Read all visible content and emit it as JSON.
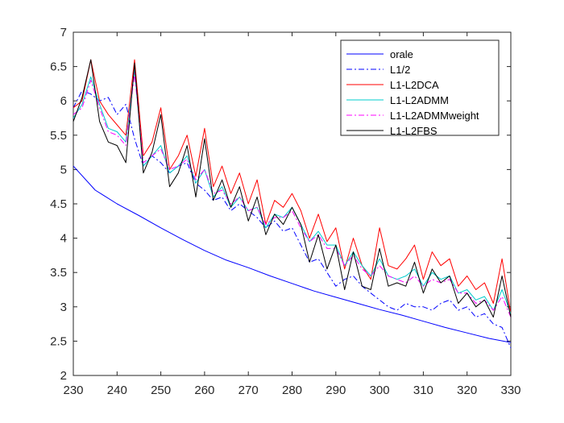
{
  "chart_data": {
    "type": "line",
    "title": "",
    "xlabel": "",
    "ylabel": "",
    "xlim": [
      230,
      330
    ],
    "ylim": [
      2,
      7
    ],
    "xticks": [
      230,
      240,
      250,
      260,
      270,
      280,
      290,
      300,
      310,
      320,
      330
    ],
    "yticks": [
      2,
      2.5,
      3,
      3.5,
      4,
      4.5,
      5,
      5.5,
      6,
      6.5,
      7
    ],
    "xtick_labels": [
      "230",
      "240",
      "250",
      "260",
      "270",
      "280",
      "290",
      "300",
      "310",
      "320",
      "330"
    ],
    "ytick_labels": [
      "2",
      "2.5",
      "3",
      "3.5",
      "4",
      "4.5",
      "5",
      "5.5",
      "6",
      "6.5",
      "7"
    ],
    "grid": false,
    "legend": {
      "placement": "top-right"
    },
    "series": [
      {
        "name": "orale",
        "color": "#0000ff",
        "dash": "solid",
        "x": [
          230,
          235,
          240,
          245,
          250,
          255,
          260,
          265,
          270,
          275,
          280,
          285,
          290,
          295,
          300,
          305,
          310,
          315,
          320,
          325,
          330
        ],
        "y": [
          5.05,
          4.7,
          4.5,
          4.33,
          4.15,
          3.98,
          3.82,
          3.68,
          3.57,
          3.45,
          3.34,
          3.23,
          3.14,
          3.05,
          2.96,
          2.88,
          2.79,
          2.7,
          2.62,
          2.54,
          2.48
        ]
      },
      {
        "name": "L1/2",
        "color": "#0000ff",
        "dash": "dashdot",
        "x": [
          230,
          232,
          234,
          236,
          238,
          240,
          242,
          244,
          246,
          248,
          250,
          252,
          254,
          256,
          258,
          260,
          262,
          264,
          266,
          268,
          270,
          272,
          274,
          276,
          278,
          280,
          282,
          284,
          286,
          288,
          290,
          292,
          294,
          296,
          298,
          300,
          302,
          304,
          306,
          308,
          310,
          312,
          314,
          316,
          318,
          320,
          322,
          324,
          326,
          328,
          330
        ],
        "y": [
          5.9,
          6.15,
          6.1,
          6.0,
          6.05,
          5.8,
          5.95,
          5.45,
          5.05,
          5.2,
          5.1,
          4.95,
          5.05,
          5.1,
          4.8,
          4.7,
          4.55,
          4.6,
          4.4,
          4.5,
          4.4,
          4.3,
          4.15,
          4.25,
          4.1,
          4.15,
          3.9,
          3.65,
          3.7,
          3.5,
          3.3,
          3.4,
          3.45,
          3.3,
          3.2,
          3.1,
          3.0,
          2.95,
          3.05,
          3.0,
          3.0,
          2.95,
          3.05,
          3.1,
          2.95,
          3.0,
          2.85,
          2.9,
          2.75,
          2.7,
          2.4
        ]
      },
      {
        "name": "L1-L2DCA",
        "color": "#ff0000",
        "dash": "solid",
        "x": [
          230,
          232,
          234,
          236,
          238,
          240,
          242,
          244,
          246,
          248,
          250,
          252,
          254,
          256,
          258,
          260,
          262,
          264,
          266,
          268,
          270,
          272,
          274,
          276,
          278,
          280,
          282,
          284,
          286,
          288,
          290,
          292,
          294,
          296,
          298,
          300,
          302,
          304,
          306,
          308,
          310,
          312,
          314,
          316,
          318,
          320,
          322,
          324,
          326,
          328,
          330
        ],
        "y": [
          5.9,
          6.0,
          6.6,
          6.0,
          5.8,
          5.65,
          5.5,
          6.6,
          5.2,
          5.4,
          5.9,
          5.0,
          5.2,
          5.5,
          4.9,
          5.6,
          4.75,
          5.05,
          4.65,
          4.95,
          4.5,
          4.85,
          4.2,
          4.55,
          4.45,
          4.65,
          4.4,
          4.0,
          4.35,
          3.95,
          4.15,
          3.55,
          4.0,
          3.6,
          3.4,
          4.15,
          3.6,
          3.55,
          3.7,
          3.9,
          3.4,
          3.8,
          3.6,
          3.7,
          3.3,
          3.45,
          3.25,
          3.35,
          3.05,
          3.7,
          2.9
        ]
      },
      {
        "name": "L1-L2ADMM",
        "color": "#00cccc",
        "dash": "solid",
        "x": [
          230,
          232,
          234,
          236,
          238,
          240,
          242,
          244,
          246,
          248,
          250,
          252,
          254,
          256,
          258,
          260,
          262,
          264,
          266,
          268,
          270,
          272,
          274,
          276,
          278,
          280,
          282,
          284,
          286,
          288,
          290,
          292,
          294,
          296,
          298,
          300,
          302,
          304,
          306,
          308,
          310,
          312,
          314,
          316,
          318,
          320,
          322,
          324,
          326,
          328,
          330
        ],
        "y": [
          5.75,
          5.95,
          6.35,
          5.95,
          5.6,
          5.55,
          5.4,
          6.45,
          5.05,
          5.2,
          5.35,
          4.95,
          5.05,
          5.2,
          4.8,
          5.0,
          4.6,
          4.75,
          4.45,
          4.6,
          4.4,
          4.45,
          4.15,
          4.35,
          4.3,
          4.45,
          4.2,
          3.95,
          4.1,
          3.9,
          3.9,
          3.6,
          3.8,
          3.6,
          3.45,
          3.7,
          3.45,
          3.4,
          3.45,
          3.55,
          3.3,
          3.5,
          3.4,
          3.45,
          3.2,
          3.25,
          3.1,
          3.15,
          2.95,
          3.25,
          2.9
        ]
      },
      {
        "name": "L1-L2ADMMweight",
        "color": "#ff00ff",
        "dash": "dashdot",
        "x": [
          230,
          232,
          234,
          236,
          238,
          240,
          242,
          244,
          246,
          248,
          250,
          252,
          254,
          256,
          258,
          260,
          262,
          264,
          266,
          268,
          270,
          272,
          274,
          276,
          278,
          280,
          282,
          284,
          286,
          288,
          290,
          292,
          294,
          296,
          298,
          300,
          302,
          304,
          306,
          308,
          310,
          312,
          314,
          316,
          318,
          320,
          322,
          324,
          326,
          328,
          330
        ],
        "y": [
          5.8,
          5.9,
          6.3,
          5.9,
          5.55,
          5.5,
          5.35,
          6.4,
          5.1,
          5.2,
          5.3,
          5.0,
          5.05,
          5.15,
          4.85,
          5.0,
          4.65,
          4.7,
          4.5,
          4.6,
          4.4,
          4.45,
          4.2,
          4.3,
          4.3,
          4.4,
          4.15,
          3.95,
          4.05,
          3.85,
          3.85,
          3.6,
          3.75,
          3.55,
          3.45,
          3.6,
          3.45,
          3.4,
          3.35,
          3.45,
          3.3,
          3.4,
          3.35,
          3.4,
          3.2,
          3.2,
          3.05,
          3.1,
          2.95,
          3.15,
          2.85
        ]
      },
      {
        "name": "L1-L2FBS",
        "color": "#000000",
        "dash": "solid",
        "x": [
          230,
          232,
          234,
          236,
          238,
          240,
          242,
          244,
          246,
          248,
          250,
          252,
          254,
          256,
          258,
          260,
          262,
          264,
          266,
          268,
          270,
          272,
          274,
          276,
          278,
          280,
          282,
          284,
          286,
          288,
          290,
          292,
          294,
          296,
          298,
          300,
          302,
          304,
          306,
          308,
          310,
          312,
          314,
          316,
          318,
          320,
          322,
          324,
          326,
          328,
          330
        ],
        "y": [
          5.7,
          6.05,
          6.6,
          5.7,
          5.4,
          5.35,
          5.1,
          6.55,
          4.95,
          5.25,
          5.8,
          4.75,
          4.95,
          5.35,
          4.6,
          5.45,
          4.55,
          4.85,
          4.45,
          4.75,
          4.25,
          4.6,
          4.05,
          4.35,
          4.2,
          4.45,
          4.2,
          3.65,
          4.05,
          3.55,
          3.9,
          3.25,
          3.8,
          3.3,
          3.25,
          3.85,
          3.3,
          3.35,
          3.3,
          3.65,
          3.2,
          3.55,
          3.35,
          3.45,
          3.05,
          3.2,
          3.0,
          3.1,
          2.85,
          3.45,
          2.85
        ]
      }
    ]
  }
}
